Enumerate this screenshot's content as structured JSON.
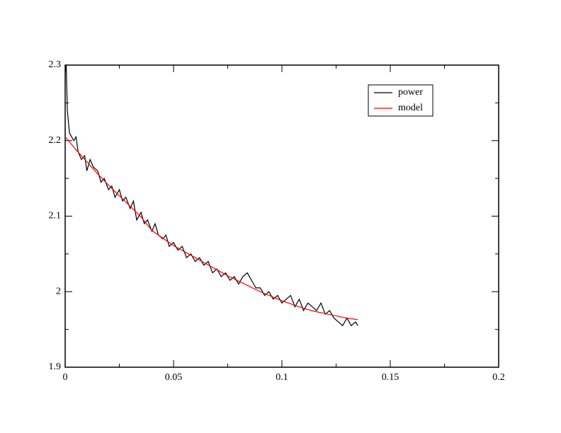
{
  "chart_data": {
    "type": "line",
    "xlim": [
      0,
      0.2
    ],
    "ylim": [
      1.9,
      2.3
    ],
    "xticks": [
      0,
      0.05,
      0.1,
      0.15,
      0.2
    ],
    "yticks": [
      1.9,
      2,
      2.1,
      2.2,
      2.3
    ],
    "xminorticks": [
      0.025,
      0.075,
      0.125,
      0.175
    ],
    "yminorticks": [
      1.95,
      2.05,
      2.15,
      2.25
    ],
    "legend_position": "upper-right",
    "series": [
      {
        "name": "power",
        "color": "#000000",
        "x": [
          0,
          0.0005,
          0.001,
          0.002,
          0.003,
          0.004,
          0.005,
          0.006,
          0.0075,
          0.009,
          0.01,
          0.0115,
          0.013,
          0.015,
          0.0165,
          0.018,
          0.02,
          0.0215,
          0.023,
          0.025,
          0.0265,
          0.028,
          0.03,
          0.0315,
          0.033,
          0.035,
          0.0365,
          0.038,
          0.04,
          0.0415,
          0.043,
          0.045,
          0.0465,
          0.048,
          0.05,
          0.052,
          0.054,
          0.056,
          0.058,
          0.06,
          0.062,
          0.064,
          0.066,
          0.068,
          0.07,
          0.072,
          0.074,
          0.076,
          0.078,
          0.08,
          0.082,
          0.084,
          0.086,
          0.088,
          0.09,
          0.092,
          0.094,
          0.096,
          0.098,
          0.1,
          0.102,
          0.104,
          0.106,
          0.108,
          0.11,
          0.112,
          0.114,
          0.116,
          0.118,
          0.12,
          0.122,
          0.124,
          0.126,
          0.128,
          0.13,
          0.132,
          0.134,
          0.135
        ],
        "values": [
          2.29,
          2.3,
          2.24,
          2.21,
          2.205,
          2.2,
          2.205,
          2.185,
          2.175,
          2.18,
          2.16,
          2.175,
          2.165,
          2.16,
          2.145,
          2.15,
          2.135,
          2.14,
          2.125,
          2.135,
          2.12,
          2.125,
          2.11,
          2.12,
          2.095,
          2.105,
          2.09,
          2.095,
          2.08,
          2.09,
          2.075,
          2.07,
          2.075,
          2.06,
          2.065,
          2.055,
          2.06,
          2.045,
          2.05,
          2.04,
          2.045,
          2.035,
          2.04,
          2.025,
          2.03,
          2.02,
          2.025,
          2.015,
          2.02,
          2.01,
          2.02,
          2.025,
          2.015,
          2.005,
          2.005,
          1.995,
          2.0,
          1.99,
          1.995,
          1.985,
          1.99,
          1.995,
          1.98,
          1.99,
          1.975,
          1.985,
          1.98,
          1.975,
          1.985,
          1.97,
          1.975,
          1.965,
          1.96,
          1.955,
          1.965,
          1.955,
          1.96,
          1.955
        ]
      },
      {
        "name": "model",
        "color": "#ff0000",
        "x": [
          0,
          0.005,
          0.01,
          0.015,
          0.02,
          0.025,
          0.03,
          0.035,
          0.04,
          0.045,
          0.05,
          0.055,
          0.06,
          0.065,
          0.07,
          0.075,
          0.08,
          0.085,
          0.09,
          0.095,
          0.1,
          0.105,
          0.11,
          0.115,
          0.12,
          0.125,
          0.13,
          0.135
        ],
        "values": [
          2.205,
          2.188,
          2.172,
          2.156,
          2.141,
          2.127,
          2.113,
          2.099,
          2.081,
          2.071,
          2.061,
          2.053,
          2.045,
          2.037,
          2.029,
          2.021,
          2.014,
          2.007,
          2.0,
          1.994,
          1.988,
          1.983,
          1.978,
          1.974,
          1.971,
          1.968,
          1.965,
          1.963
        ]
      }
    ]
  }
}
